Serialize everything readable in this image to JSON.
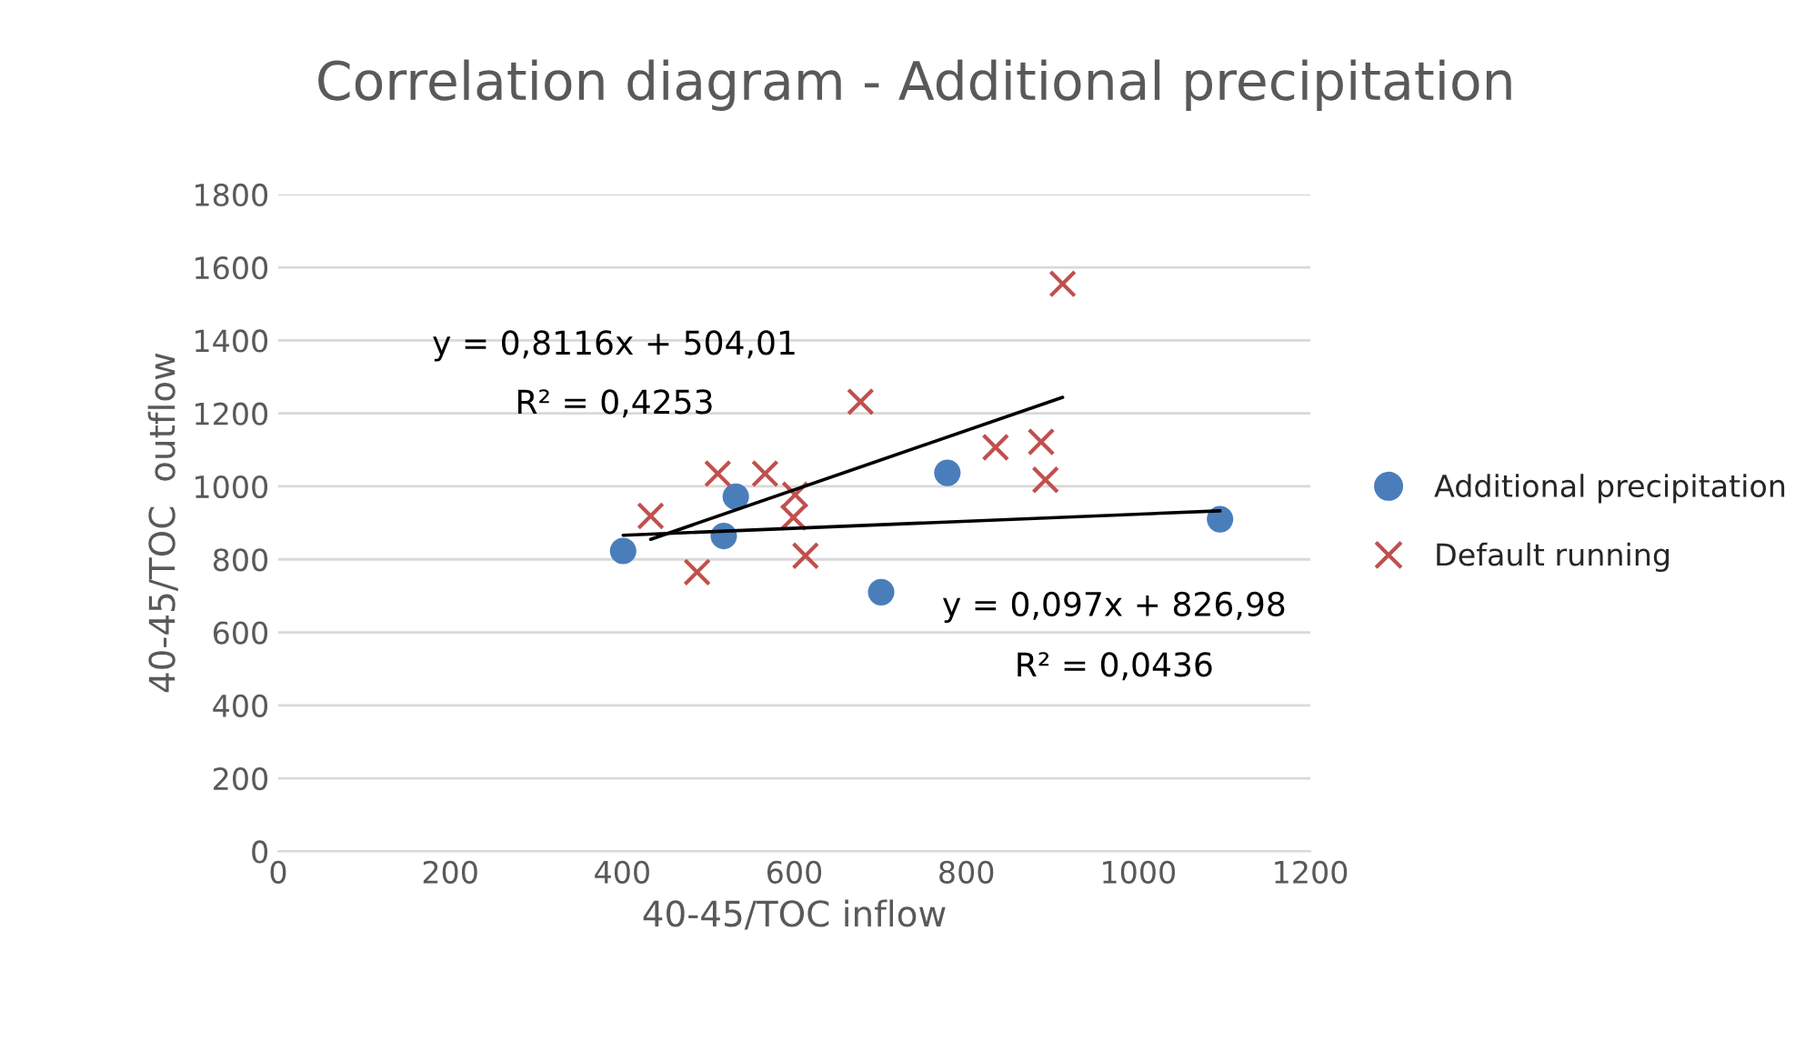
{
  "chart_data": {
    "type": "scatter",
    "title": "Correlation diagram - Additional precipitation",
    "xlabel": "40-45/TOC inflow",
    "ylabel": "40-45/TOC  outflow",
    "xlim": [
      0,
      1200
    ],
    "xticks": [
      0,
      200,
      400,
      600,
      800,
      1000,
      1200
    ],
    "ylim": [
      0,
      1800
    ],
    "yticks": [
      0,
      200,
      400,
      600,
      800,
      1000,
      1200,
      1400,
      1600,
      1800
    ],
    "grid": "y",
    "legend": "right",
    "series": [
      {
        "name": "Additional precipitation",
        "color": "#4a7ebb",
        "marker": "circle",
        "x": [
          401,
          532,
          518,
          701,
          778,
          1095
        ],
        "values": [
          823,
          972,
          864,
          710,
          1037,
          910
        ]
      },
      {
        "name": "Default running",
        "color": "#c0504d",
        "marker": "cross",
        "x": [
          433,
          487,
          511,
          566,
          601,
          599,
          613,
          677,
          834,
          887,
          892,
          912
        ],
        "values": [
          919,
          765,
          1035,
          1035,
          977,
          915,
          810,
          1232,
          1107,
          1122,
          1018,
          1555
        ]
      },
      {
        "type": "line",
        "color": "#000000",
        "x": [
          401,
          1095
        ],
        "values": [
          866,
          933
        ]
      },
      {
        "type": "line",
        "color": "#000000",
        "x": [
          433,
          912
        ],
        "values": [
          855,
          1244
        ]
      }
    ],
    "annotations": [
      "y = 0,8116x + 504,01",
      "R² = 0,4253",
      "y = 0,097x + 826,98",
      "R² = 0,0436"
    ]
  }
}
